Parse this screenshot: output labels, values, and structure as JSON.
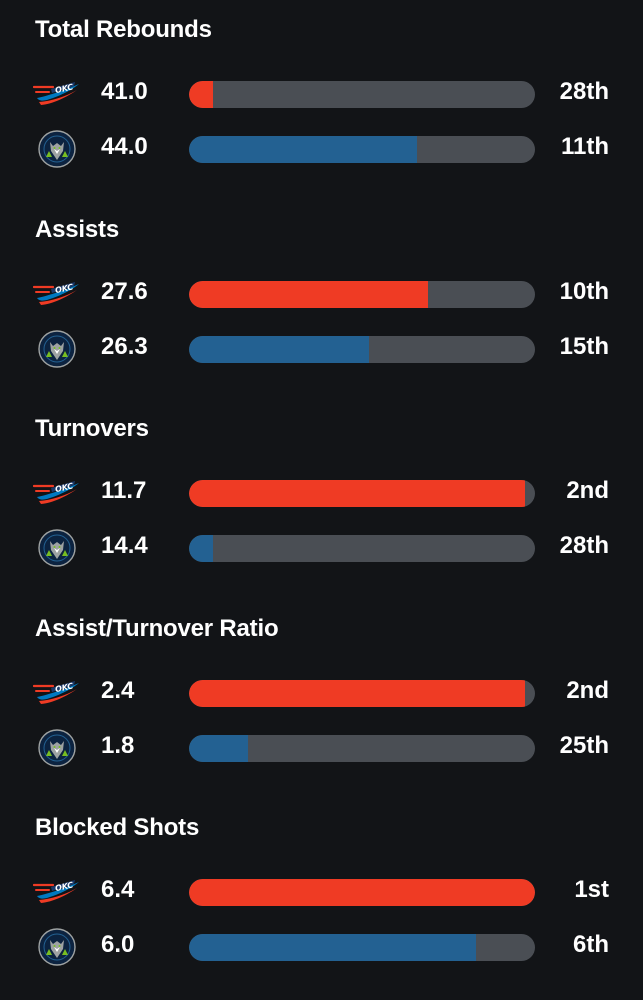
{
  "teams": [
    {
      "key": "okc",
      "logo_icon": "okc-thunder-logo-icon",
      "color": "#ef3b24"
    },
    {
      "key": "min",
      "logo_icon": "minnesota-timberwolves-logo-icon",
      "color": "#236192"
    }
  ],
  "colors": {
    "track": "#4a4e54",
    "background": "#121417"
  },
  "stats": [
    {
      "title": "Total Rebounds",
      "rows": [
        {
          "team": "okc",
          "value": "41.0",
          "rank": "28th",
          "fill_percent": 7
        },
        {
          "team": "min",
          "value": "44.0",
          "rank": "11th",
          "fill_percent": 66
        }
      ]
    },
    {
      "title": "Assists",
      "rows": [
        {
          "team": "okc",
          "value": "27.6",
          "rank": "10th",
          "fill_percent": 69
        },
        {
          "team": "min",
          "value": "26.3",
          "rank": "15th",
          "fill_percent": 52
        }
      ]
    },
    {
      "title": "Turnovers",
      "rows": [
        {
          "team": "okc",
          "value": "11.7",
          "rank": "2nd",
          "fill_percent": 97
        },
        {
          "team": "min",
          "value": "14.4",
          "rank": "28th",
          "fill_percent": 7
        }
      ]
    },
    {
      "title": "Assist/Turnover Ratio",
      "rows": [
        {
          "team": "okc",
          "value": "2.4",
          "rank": "2nd",
          "fill_percent": 97
        },
        {
          "team": "min",
          "value": "1.8",
          "rank": "25th",
          "fill_percent": 17
        }
      ]
    },
    {
      "title": "Blocked Shots",
      "rows": [
        {
          "team": "okc",
          "value": "6.4",
          "rank": "1st",
          "fill_percent": 100
        },
        {
          "team": "min",
          "value": "6.0",
          "rank": "6th",
          "fill_percent": 83
        }
      ]
    }
  ]
}
